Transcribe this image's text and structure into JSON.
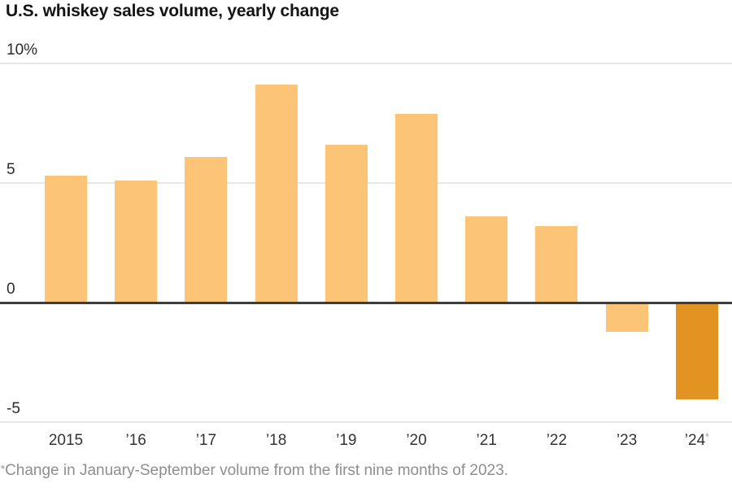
{
  "header": {
    "title": "U.S. whiskey sales volume, yearly change"
  },
  "chart_data": {
    "type": "bar",
    "title": "U.S. whiskey sales volume, yearly change",
    "categories": [
      "2015",
      "’16",
      "’17",
      "’18",
      "’19",
      "’20",
      "’21",
      "’22",
      "’23",
      "’24*"
    ],
    "values": [
      5.3,
      5.1,
      6.1,
      9.1,
      6.6,
      7.9,
      3.6,
      3.2,
      -1.2,
      -4.0
    ],
    "unit": "%",
    "xlabel": "",
    "ylabel": "",
    "ylim": [
      -5,
      10
    ],
    "yticks": [
      {
        "value": 10,
        "label": "10%"
      },
      {
        "value": 5,
        "label": "5"
      },
      {
        "value": 0,
        "label": "0"
      },
      {
        "value": -5,
        "label": "-5"
      }
    ],
    "grid": true,
    "legend_position": "none",
    "colors": {
      "bar": "#FBC477",
      "highlight_bar": "#E29321",
      "gridline": "#E7E7E7",
      "zero_line": "#3D3D3D",
      "title_text": "#141414",
      "tick_text": "#333333",
      "footnote_text": "#8E8E8E"
    },
    "highlight_index": 9
  },
  "footnote": {
    "marker": "*",
    "text": "Change in January-September volume from the first nine months of 2023."
  }
}
